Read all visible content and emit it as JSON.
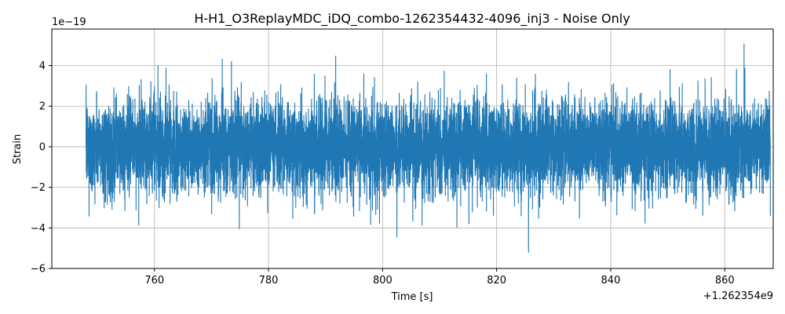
{
  "chart_data": {
    "type": "line",
    "title": "H-H1_O3ReplayMDC_iDQ_combo-1262354432-4096_inj3 - Noise Only",
    "xlabel": "Time [s]",
    "ylabel": "Strain",
    "x_offset_label": "+1.262354e9",
    "y_scale_label": "1e−19",
    "xlim": [
      742,
      868.5
    ],
    "ylim": [
      -6,
      5.8
    ],
    "x_ticks": [
      760,
      780,
      800,
      820,
      840,
      860
    ],
    "x_tick_labels": [
      "760",
      "780",
      "800",
      "820",
      "840",
      "860"
    ],
    "y_ticks": [
      -6,
      -4,
      -2,
      0,
      2,
      4
    ],
    "y_tick_labels": [
      "−6",
      "−4",
      "−2",
      "0",
      "2",
      "4"
    ],
    "grid": true,
    "series": [
      {
        "color": "#1f77b4",
        "x_range": [
          748,
          868
        ],
        "typical_amplitude": 2.0,
        "max_value": 5.35,
        "min_value": -5.45
      }
    ]
  }
}
